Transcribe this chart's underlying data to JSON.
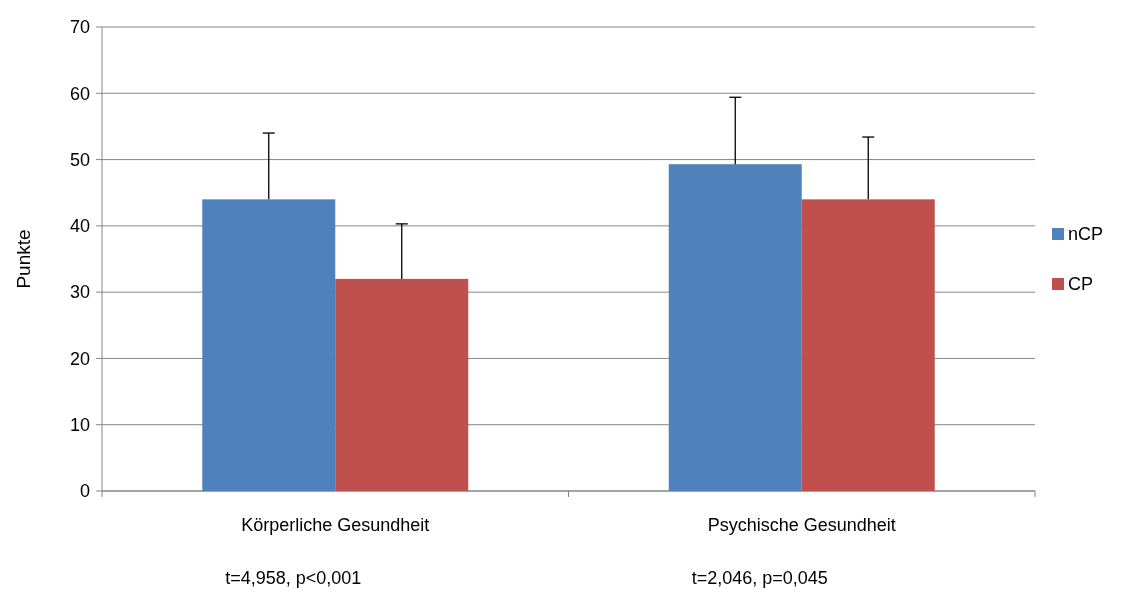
{
  "chart_data": {
    "type": "bar",
    "ylabel": "Punkte",
    "categories": [
      "Körperliche Gesundheit",
      "Psychische Gesundheit"
    ],
    "series": [
      {
        "name": "nCP",
        "color": "#4f81bd",
        "values": [
          44.0,
          49.3
        ],
        "errors": [
          [
            44.0,
            54.0
          ],
          [
            49.3,
            59.4
          ]
        ]
      },
      {
        "name": "CP",
        "color": "#c0504d",
        "values": [
          32.0,
          44.0
        ],
        "errors": [
          [
            32.0,
            40.3
          ],
          [
            44.0,
            53.4
          ]
        ]
      }
    ],
    "ylim": [
      0,
      70
    ],
    "yticks": [
      0,
      10,
      20,
      30,
      40,
      50,
      60,
      70
    ],
    "grid": "y",
    "legend": "right",
    "annotations": [
      "t=4,958, p<0,001",
      "t=2,046, p=0,045"
    ]
  }
}
